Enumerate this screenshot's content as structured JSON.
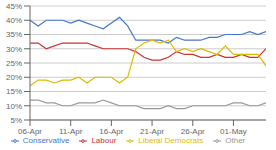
{
  "chart_data": {
    "type": "line",
    "legend": "bottom",
    "grid": true,
    "x": [
      0,
      1,
      2,
      3,
      4,
      5,
      6,
      7,
      8,
      9,
      10,
      11,
      12,
      13,
      14,
      15,
      16,
      17,
      18,
      19,
      20,
      21,
      22,
      23,
      24,
      25,
      26,
      27,
      28,
      29
    ],
    "xlim": [
      0,
      29
    ],
    "xticks": [
      {
        "value": 0,
        "label": "06-Apr"
      },
      {
        "value": 5,
        "label": "11-Apr"
      },
      {
        "value": 10,
        "label": "16-Apr"
      },
      {
        "value": 15,
        "label": "21-Apr"
      },
      {
        "value": 20,
        "label": "26-Apr"
      },
      {
        "value": 25,
        "label": "01-May"
      }
    ],
    "ylim": [
      5,
      45
    ],
    "yticks": [
      {
        "value": 5,
        "label": "5%"
      },
      {
        "value": 10,
        "label": "10%"
      },
      {
        "value": 15,
        "label": "15%"
      },
      {
        "value": 20,
        "label": "20%"
      },
      {
        "value": 25,
        "label": "25%"
      },
      {
        "value": 30,
        "label": "30%"
      },
      {
        "value": 35,
        "label": "35%"
      },
      {
        "value": 40,
        "label": "40%"
      },
      {
        "value": 45,
        "label": "45%"
      }
    ],
    "series": [
      {
        "name": "Labour",
        "color": "#CC3333",
        "values": [
          32,
          32,
          30,
          31,
          32,
          32,
          32,
          32,
          31,
          30,
          30,
          30,
          30,
          29,
          27,
          26,
          26,
          27,
          29,
          28,
          28,
          27,
          27,
          28,
          27,
          27,
          28,
          27,
          27,
          30
        ]
      },
      {
        "name": "Conservative",
        "color": "#4477CC",
        "values": [
          40,
          38,
          40,
          40,
          40,
          39,
          40,
          39,
          38,
          37,
          39,
          41,
          38,
          33,
          33,
          33,
          33,
          32,
          34,
          33,
          33,
          33,
          34,
          34,
          35,
          35,
          35,
          36,
          35,
          36
        ]
      },
      {
        "name": "Liberal Democrats",
        "color": "#DDBB00",
        "values": [
          17,
          19,
          19,
          18,
          19,
          19,
          20,
          18,
          20,
          20,
          20,
          18,
          20,
          30,
          32,
          33,
          32,
          33,
          29,
          30,
          29,
          30,
          29,
          28,
          31,
          28,
          28,
          28,
          28,
          24
        ]
      },
      {
        "name": "Other",
        "color": "#999999",
        "values": [
          12,
          12,
          11,
          11,
          10,
          10,
          11,
          11,
          11,
          12,
          11,
          10,
          10,
          10,
          9,
          9,
          9,
          10,
          9,
          9,
          10,
          10,
          10,
          10,
          10,
          11,
          11,
          10,
          10,
          11
        ]
      }
    ]
  }
}
